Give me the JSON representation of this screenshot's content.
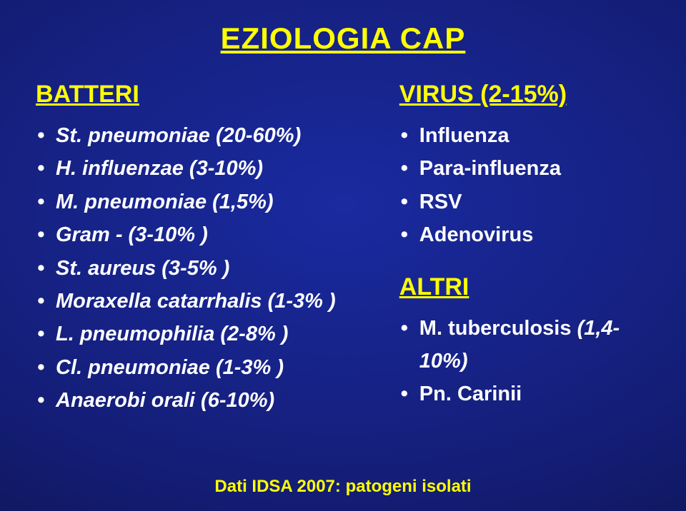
{
  "title": "EZIOLOGIA CAP",
  "left": {
    "heading": "BATTERI",
    "items": [
      {
        "label": "St. pneumoniae (20-60%)",
        "italic": true
      },
      {
        "label": "H. influenzae      (3-10%)",
        "italic": true
      },
      {
        "label": "M. pneumoniae (1,5%)",
        "italic": true
      },
      {
        "label": "Gram - (3-10% )",
        "italic": true
      },
      {
        "label": "St. aureus (3-5% )",
        "italic": true
      },
      {
        "label": "Moraxella catarrhalis (1-3% )",
        "italic": true
      },
      {
        "label": "L. pneumophilia  (2-8% )",
        "italic": true
      },
      {
        "label": "Cl. pneumoniae (1-3% )",
        "italic": true
      },
      {
        "label": "Anaerobi orali (6-10%)",
        "italic": true
      }
    ]
  },
  "right_top": {
    "heading": "VIRUS (2-15%)",
    "items": [
      {
        "label": "Influenza",
        "italic": false
      },
      {
        "label": "Para-influenza",
        "italic": false
      },
      {
        "label": "RSV",
        "italic": false
      },
      {
        "label": "Adenovirus",
        "italic": false
      }
    ]
  },
  "right_bottom": {
    "heading": "ALTRI",
    "items": [
      {
        "label_html": "M. tuberculosis <span class=\"italic\">(1,4-10%)</span>"
      },
      {
        "label": "Pn. Carinii",
        "italic": false
      }
    ]
  },
  "footer": "Dati IDSA 2007: patogeni  isolati",
  "colors": {
    "heading": "#ffff00",
    "text": "#ffffff",
    "bg_center": "#1a2aa0",
    "bg_edge": "#050828"
  }
}
